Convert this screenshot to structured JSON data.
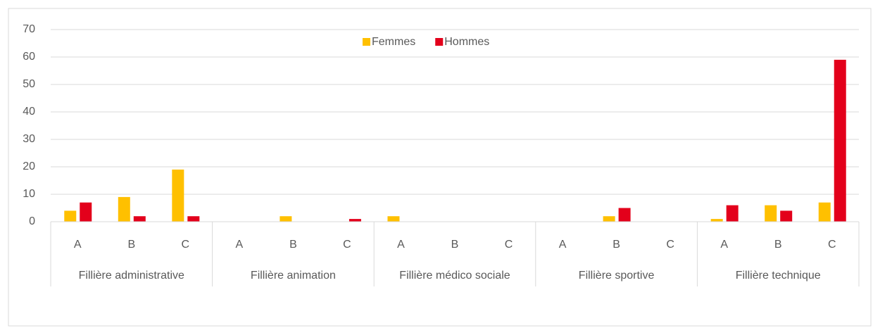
{
  "chart_data": {
    "type": "bar",
    "categories": [
      "A",
      "B",
      "C",
      "A",
      "B",
      "C",
      "A",
      "B",
      "C",
      "A",
      "B",
      "C",
      "A",
      "B",
      "C"
    ],
    "groups": [
      "Fillière administrative",
      "Fillière animation",
      "Fillière médico sociale",
      "Fillière sportive",
      "Fillière technique"
    ],
    "series": [
      {
        "name": "Femmes",
        "color": "#ffc000",
        "values": [
          4,
          9,
          19,
          0,
          2,
          0,
          2,
          0,
          0,
          0,
          2,
          0,
          1,
          6,
          7
        ]
      },
      {
        "name": "Hommes",
        "color": "#e3001b",
        "values": [
          7,
          2,
          2,
          0,
          0,
          1,
          0,
          0,
          0,
          0,
          5,
          0,
          6,
          4,
          59
        ]
      }
    ],
    "ylim": [
      0,
      70
    ],
    "yticks": [
      0,
      10,
      20,
      30,
      40,
      50,
      60,
      70
    ],
    "grid": true,
    "legend": "top"
  }
}
